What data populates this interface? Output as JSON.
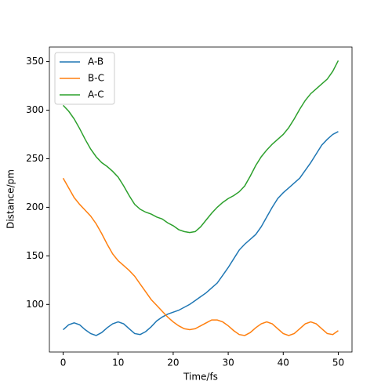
{
  "chart_data": {
    "type": "line",
    "xlabel": "Time/fs",
    "ylabel": "Distance/pm",
    "x": [
      0,
      1,
      2,
      3,
      4,
      5,
      6,
      7,
      8,
      9,
      10,
      11,
      12,
      13,
      14,
      15,
      16,
      17,
      18,
      19,
      20,
      21,
      22,
      23,
      24,
      25,
      26,
      27,
      28,
      29,
      30,
      31,
      32,
      33,
      34,
      35,
      36,
      37,
      38,
      39,
      40,
      41,
      42,
      43,
      44,
      45,
      46,
      47,
      48,
      49,
      50
    ],
    "series": [
      {
        "name": "A-B",
        "color": "#1f77b4",
        "values": [
          74,
          79,
          81,
          79,
          74,
          70,
          68,
          71,
          76,
          80,
          82,
          80,
          75,
          70,
          69,
          72,
          77,
          83,
          87,
          90,
          92,
          94,
          97,
          100,
          104,
          108,
          112,
          117,
          122,
          130,
          138,
          147,
          156,
          162,
          167,
          172,
          180,
          190,
          200,
          209,
          215,
          220,
          225,
          230,
          238,
          246,
          255,
          264,
          270,
          275,
          278
        ]
      },
      {
        "name": "B-C",
        "color": "#ff7f0e",
        "values": [
          230,
          220,
          210,
          203,
          197,
          191,
          183,
          173,
          162,
          152,
          145,
          140,
          135,
          129,
          121,
          113,
          105,
          99,
          93,
          87,
          82,
          78,
          75,
          74,
          75,
          78,
          81,
          84,
          84,
          82,
          78,
          73,
          69,
          68,
          71,
          76,
          80,
          82,
          80,
          75,
          70,
          68,
          70,
          75,
          80,
          82,
          80,
          75,
          70,
          69,
          73
        ]
      },
      {
        "name": "A-C",
        "color": "#2ca02c",
        "values": [
          305,
          299,
          291,
          281,
          270,
          260,
          252,
          246,
          242,
          237,
          231,
          222,
          212,
          203,
          198,
          195,
          193,
          190,
          188,
          184,
          181,
          177,
          175,
          174,
          175,
          180,
          187,
          194,
          200,
          205,
          209,
          212,
          216,
          222,
          232,
          243,
          252,
          259,
          265,
          270,
          275,
          282,
          291,
          301,
          310,
          317,
          322,
          327,
          332,
          340,
          351
        ]
      }
    ],
    "xlim": [
      -2.5,
      52.5
    ],
    "ylim": [
      51,
      365
    ],
    "xticks": [
      0,
      10,
      20,
      30,
      40,
      50
    ],
    "yticks": [
      100,
      150,
      200,
      250,
      300,
      350
    ],
    "legend": "upper left"
  }
}
